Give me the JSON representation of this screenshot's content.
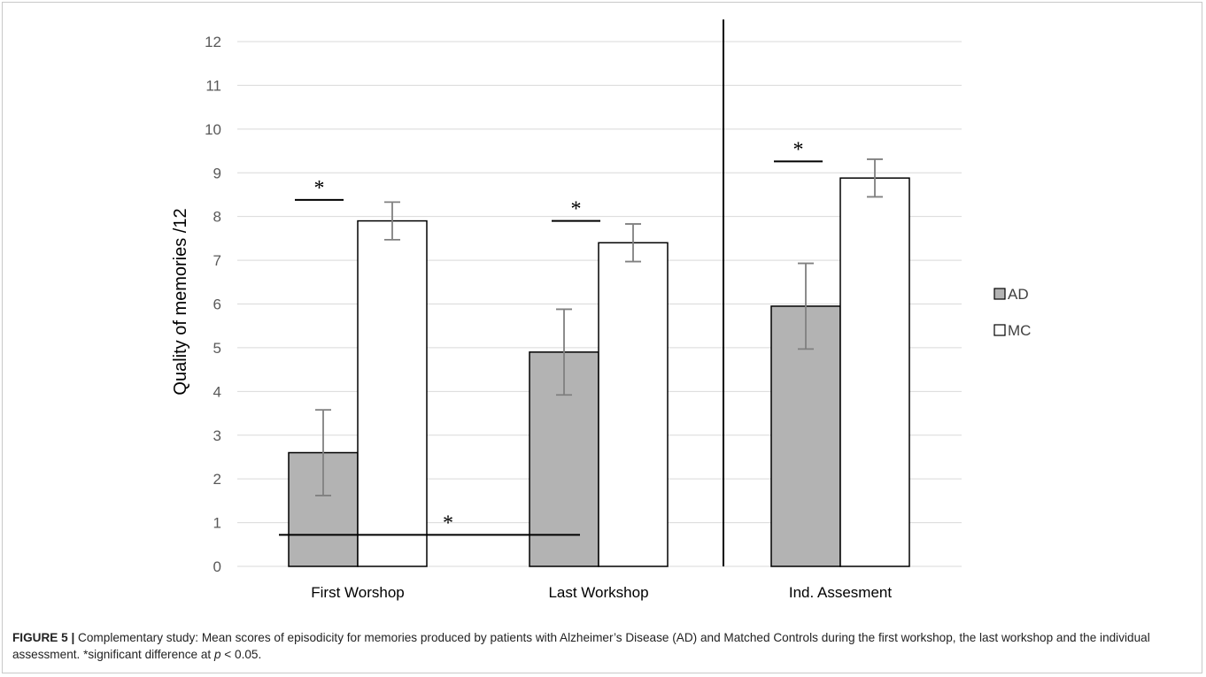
{
  "chart_data": {
    "type": "bar",
    "ylabel": "Quality of memories /12",
    "ylim": [
      0,
      12
    ],
    "yticks": [
      "0",
      "1",
      "2",
      "3",
      "4",
      "5",
      "6",
      "7",
      "8",
      "9",
      "10",
      "11",
      "12"
    ],
    "categories": [
      "First Worshop",
      "Last Workshop",
      "Ind. Assesment"
    ],
    "series": [
      {
        "name": "AD",
        "values": [
          2.6,
          4.9,
          5.95
        ],
        "error": [
          0.98,
          0.98,
          0.98
        ],
        "color": "#b3b3b3"
      },
      {
        "name": "MC",
        "values": [
          7.9,
          7.4,
          8.88
        ],
        "error": [
          0.43,
          0.43,
          0.43
        ],
        "color": "#ffffff"
      }
    ],
    "legend_position": "right",
    "grid": true,
    "significance": [
      {
        "label": "*",
        "between": "AD vs MC",
        "category": "First Worshop",
        "y": 8.38
      },
      {
        "label": "*",
        "between": "AD vs MC",
        "category": "Last Workshop",
        "y": 7.9
      },
      {
        "label": "*",
        "between": "AD vs MC",
        "category": "Ind. Assesment",
        "y": 9.26
      },
      {
        "label": "*",
        "between": "First Worshop AD vs Last Workshop AD",
        "y": 0.72
      }
    ]
  },
  "caption": {
    "label": "FIGURE 5 |",
    "text_before_p": " Complementary study: Mean scores of episodicity for memories produced by patients with Alzheimer’s Disease (AD) and Matched Controls during the first workshop, the last workshop and the individual assessment. *significant difference at ",
    "p_symbol": "p",
    "text_after_p": " < 0.05."
  }
}
